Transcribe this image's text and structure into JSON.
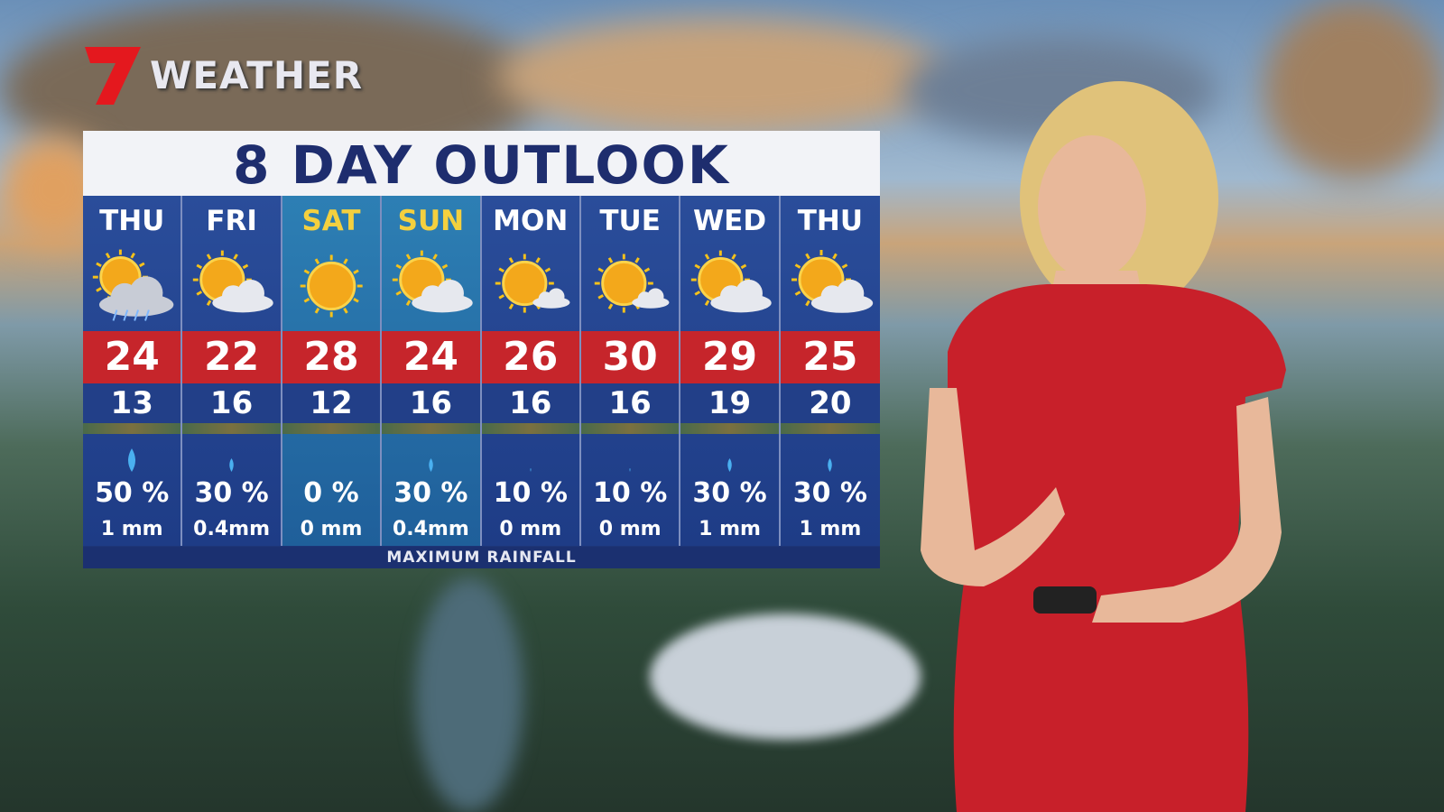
{
  "logo": {
    "text": "WEATHER",
    "brand_color": "#e4181e"
  },
  "board": {
    "title": "8 DAY OUTLOOK",
    "footer": "MAXIMUM RAINFALL",
    "colors": {
      "max_band": "#c6252b",
      "panel": "#1d3577",
      "weekend_label": "#f4d03f"
    },
    "days": [
      {
        "day": "THU",
        "icon": "sun-cloud-showers",
        "max": "24",
        "min": "13",
        "chance": "50 %",
        "rain": "1 mm",
        "drop": "large"
      },
      {
        "day": "FRI",
        "icon": "sun-cloud",
        "max": "22",
        "min": "16",
        "chance": "30 %",
        "rain": "0.4mm",
        "drop": "small"
      },
      {
        "day": "SAT",
        "icon": "sun",
        "max": "28",
        "min": "12",
        "chance": "0  %",
        "rain": "0 mm",
        "drop": "none"
      },
      {
        "day": "SUN",
        "icon": "sun-cloud",
        "max": "24",
        "min": "16",
        "chance": "30 %",
        "rain": "0.4mm",
        "drop": "small"
      },
      {
        "day": "MON",
        "icon": "sun-small-cloud",
        "max": "26",
        "min": "16",
        "chance": "10 %",
        "rain": "0 mm",
        "drop": "tiny"
      },
      {
        "day": "TUE",
        "icon": "sun-small-cloud",
        "max": "30",
        "min": "16",
        "chance": "10 %",
        "rain": "0 mm",
        "drop": "tiny"
      },
      {
        "day": "WED",
        "icon": "sun-cloud",
        "max": "29",
        "min": "19",
        "chance": "30 %",
        "rain": "1 mm",
        "drop": "small"
      },
      {
        "day": "THU",
        "icon": "sun-cloud",
        "max": "25",
        "min": "20",
        "chance": "30 %",
        "rain": "1 mm",
        "drop": "small"
      }
    ]
  }
}
